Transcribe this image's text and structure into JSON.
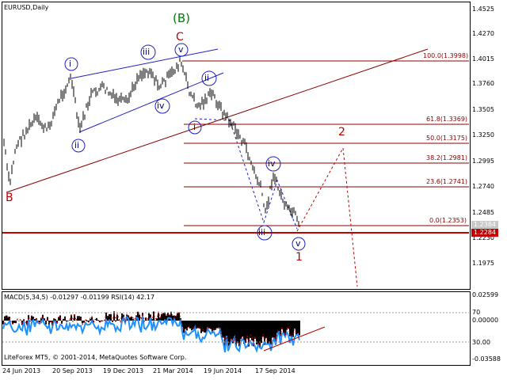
{
  "window": {
    "symbol_title": "EURUSD,Daily"
  },
  "main_chart": {
    "price_axis": [
      "1.4525",
      "1.4270",
      "1.4015",
      "1.3760",
      "1.3505",
      "1.3250",
      "1.2995",
      "1.2740",
      "1.2485",
      "1.2230",
      "1.1975"
    ],
    "current_price_tag": "1.2284",
    "bid_tag": "1.2384",
    "fib_levels": [
      {
        "label": "100.0(1.3998)"
      },
      {
        "label": "61.8(1.3369)"
      },
      {
        "label": "50.0(1.3175)"
      },
      {
        "label": "38.2(1.2981)"
      },
      {
        "label": "23.6(1.2741)"
      },
      {
        "label": "0.0(1.2353)"
      }
    ],
    "wave_labels": {
      "big_B": "(B)",
      "C": "C",
      "B": "B",
      "i1": "i",
      "ii1": "ii",
      "iii1": "iii",
      "iv1": "iv",
      "v1": "v",
      "i2": "i",
      "ii2": "ii",
      "iii2": "iii",
      "iv2": "iv",
      "v2": "v",
      "w1": "1",
      "w2": "2"
    },
    "colors": {
      "fib": "#8b0000",
      "blue_wave": "#00008b",
      "green": "#008000",
      "red": "#c00000",
      "candles": "#000000"
    }
  },
  "indicator": {
    "title": "MACD(5,34,5) -0.01297 -0.01199 RSI(14) 42.17",
    "axis": [
      "0.02599",
      "70",
      "0.00000",
      "30.00",
      "-0.03588"
    ],
    "copyright": "LiteForex MT5, © 2001-2014, MetaQuotes Software Corp."
  },
  "time_axis": [
    "24 Jun 2013",
    "20 Sep 2013",
    "19 Dec 2013",
    "21 Mar 2014",
    "19 Jun 2014",
    "17 Sep 2014"
  ]
}
